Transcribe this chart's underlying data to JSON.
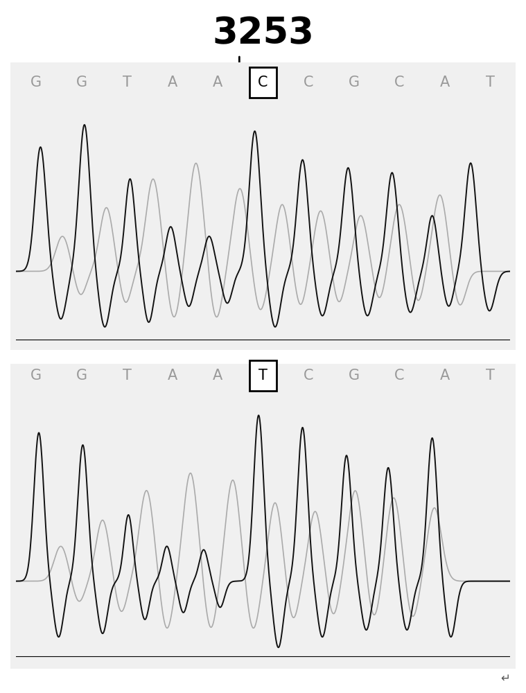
{
  "title": "3253",
  "title_fontsize": 38,
  "title_fontweight": "bold",
  "bg_color": "#ffffff",
  "panel_bg": "#f0f0f0",
  "seq1": [
    "G",
    "G",
    "T",
    "A",
    "A",
    "C",
    "C",
    "G",
    "C",
    "A",
    "T"
  ],
  "seq2": [
    "G",
    "G",
    "T",
    "A",
    "A",
    "T",
    "C",
    "G",
    "C",
    "A",
    "T"
  ],
  "boxed_idx1": 5,
  "boxed_idx2": 5,
  "seq_color": "#999999",
  "seq_fontsize": 15,
  "black_color": "#111111",
  "gray_color": "#aaaaaa",
  "lw_black": 1.4,
  "lw_gray": 1.2
}
